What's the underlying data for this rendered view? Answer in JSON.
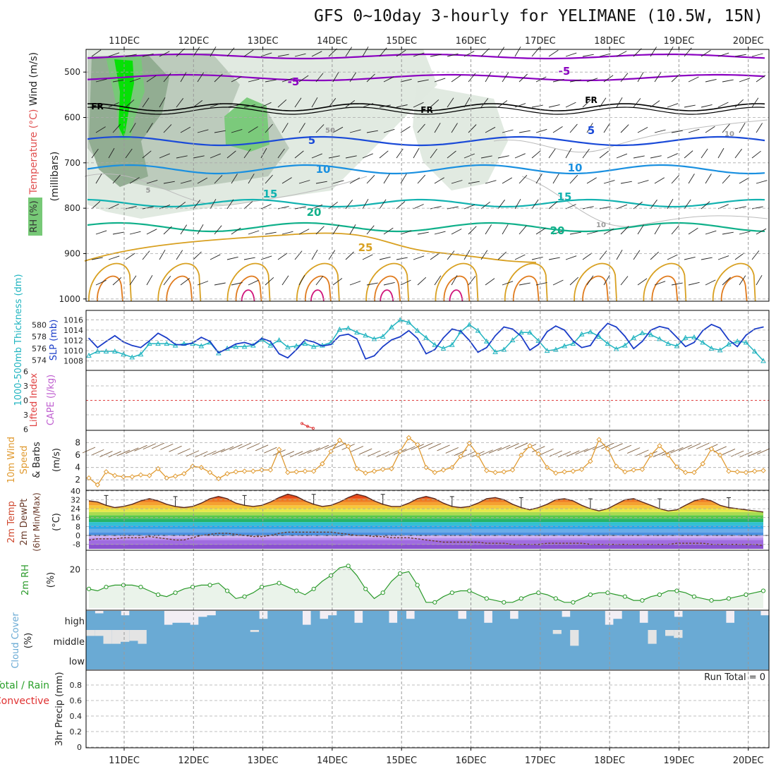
{
  "title": "GFS 0~10day 3-hourly for YELIMANE (10.5W, 15N)",
  "dates": [
    "11DEC",
    "12DEC",
    "13DEC",
    "14DEC",
    "15DEC",
    "16DEC",
    "17DEC",
    "18DEC",
    "19DEC",
    "20DEC"
  ],
  "colors": {
    "rh_light": "#dfe9df",
    "rh_mid": "#b9c9b9",
    "rh_dark": "#8fab8f",
    "rh_green": "#77c977",
    "rh_bright": "#00e200",
    "temp_neg": "#8a00c0",
    "temp_fr": "#000000",
    "temp5": "#1a4ad8",
    "temp10": "#1a90e0",
    "temp15": "#12b2b0",
    "temp20": "#10b08a",
    "temp25": "#d8a020",
    "temp_hot": "#e07a1c",
    "temp_hotter": "#d0147a",
    "slp": "#1a3cc8",
    "thick": "#20b4c0",
    "lifted": "#e04040",
    "cape": "#c060d0",
    "wind": "#e09a30",
    "barb": "#806040",
    "dew": "#6b3c2c",
    "rh2m": "#2a9a2a",
    "rh2m_fill": "#eaf3ea",
    "cloud": "#6aaad4",
    "cloud_bg": "#f2eef4",
    "cloud_grey": "#e4e4e4",
    "precip_total": "#2aa02a",
    "precip_conv": "#e03030"
  },
  "panel1": {
    "ylabel_wind": "Wind (m/s)",
    "ylabel_temp": "Temperature (°C)",
    "ylabel_rh": "RH (%)",
    "ylabel_mb": "(millibars)",
    "yticks": [
      "500",
      "600",
      "700",
      "800",
      "900",
      "1000"
    ],
    "isotherm_labels": [
      "-5",
      "-5",
      "FR",
      "FR",
      "FR",
      "5",
      "5",
      "10",
      "10",
      "15",
      "15",
      "20",
      "20",
      "25",
      "50",
      "10",
      "10",
      "5"
    ]
  },
  "panel2": {
    "ylabel_thick": "1000-500mb Thickness (dm)",
    "ylabel_slp": "SLP (mb)",
    "yticks_left": [
      "580",
      "578",
      "576",
      "574"
    ],
    "yticks_right": [
      "1016",
      "1014",
      "1012",
      "1010",
      "1008"
    ]
  },
  "panel3": {
    "ylabel_li": "Lifted Index",
    "ylabel_cape": "CAPE (J/kg)",
    "yticks": [
      "6",
      "3",
      "0",
      "3",
      "6"
    ]
  },
  "panel4": {
    "ylabel_a": "10m Wind",
    "ylabel_b": "Speed",
    "ylabel_c": "& Barbs",
    "ylabel_unit": "(m/s)",
    "yticks": [
      "8",
      "6",
      "4",
      "2"
    ]
  },
  "panel5": {
    "ylabel_a": "2m Temp",
    "ylabel_b": "2m DewPt",
    "ylabel_c": "(6hr Min/Max)",
    "ylabel_unit": "(°C)",
    "yticks": [
      "40",
      "32",
      "24",
      "16",
      "8",
      "0",
      "-8"
    ]
  },
  "panel6": {
    "ylabel": "2m RH",
    "ylabel_unit": "(%)",
    "yticks": [
      "20"
    ]
  },
  "panel7": {
    "ylabel": "Cloud Cover",
    "ylabel_unit": "(%)",
    "levels": [
      "high",
      "middle",
      "low"
    ]
  },
  "panel8": {
    "ylabel_a": "Total / Rain",
    "ylabel_b": "Convective",
    "ylabel_c": "3hr Precip (mm)",
    "run_total": "Run Total = 0",
    "yticks": [
      "0.8",
      "0.6",
      "0.4",
      "0.2",
      "0"
    ]
  },
  "chart_data": {
    "type": "line",
    "time_step_hours": 3,
    "steps": 79,
    "slp_mb": [
      1012.4,
      1010.6,
      1011.8,
      1012.9,
      1011.7,
      1011.0,
      1010.6,
      1011.9,
      1013.4,
      1012.5,
      1011.2,
      1011.1,
      1011.5,
      1012.6,
      1011.8,
      1009.6,
      1010.4,
      1011.3,
      1011.6,
      1011.1,
      1012.4,
      1011.8,
      1009.4,
      1008.6,
      1010.2,
      1012.1,
      1011.7,
      1010.9,
      1011.2,
      1012.9,
      1013.2,
      1012.3,
      1008.4,
      1009.0,
      1010.8,
      1012.1,
      1012.7,
      1013.9,
      1012.4,
      1009.4,
      1010.2,
      1012.5,
      1014.2,
      1013.8,
      1012.0,
      1009.7,
      1010.6,
      1012.9,
      1014.6,
      1014.2,
      1012.8,
      1010.1,
      1011.2,
      1013.7,
      1014.8,
      1014.0,
      1011.9,
      1010.6,
      1011.0,
      1013.5,
      1015.3,
      1014.6,
      1012.8,
      1010.4,
      1011.8,
      1014.0,
      1014.7,
      1014.3,
      1012.6,
      1010.8,
      1011.6,
      1013.9,
      1015.1,
      1014.4,
      1012.1,
      1010.8,
      1013.0,
      1014.2,
      1014.6
    ],
    "thickness_dm": [
      574.8,
      575.5,
      575.5,
      575.5,
      575.0,
      574.5,
      575.0,
      576.8,
      576.8,
      576.8,
      576.5,
      576.8,
      576.8,
      576.4,
      577.0,
      575.2,
      576.0,
      576.3,
      576.3,
      576.5,
      577.5,
      576.5,
      577.4,
      576.2,
      576.4,
      576.8,
      576.3,
      576.5,
      577.0,
      579.2,
      579.4,
      578.7,
      578.2,
      577.6,
      578.0,
      579.6,
      580.8,
      580.4,
      579.0,
      577.8,
      576.6,
      576.0,
      576.6,
      578.8,
      580.0,
      579.0,
      577.2,
      575.4,
      575.8,
      577.4,
      578.7,
      578.7,
      577.3,
      575.6,
      575.8,
      576.4,
      576.8,
      578.4,
      578.8,
      578.0,
      576.8,
      575.9,
      576.5,
      577.8,
      578.6,
      578.3,
      577.6,
      576.8,
      576.4,
      577.8,
      577.9,
      577.0,
      576.0,
      575.7,
      576.7,
      577.2,
      577.0,
      575.5,
      573.9
    ],
    "wind10m_ms": [
      2.3,
      1.2,
      3.3,
      2.7,
      2.5,
      2.5,
      2.8,
      2.7,
      3.8,
      2.3,
      2.6,
      3.0,
      4.2,
      4.0,
      3.2,
      2.2,
      3.0,
      3.3,
      3.4,
      3.4,
      3.6,
      3.6,
      6.9,
      3.2,
      3.3,
      3.4,
      3.4,
      4.6,
      6.6,
      8.4,
      7.4,
      3.8,
      3.1,
      3.4,
      3.7,
      3.8,
      6.6,
      8.8,
      7.7,
      4.0,
      3.2,
      3.6,
      4.0,
      5.8,
      7.9,
      6.0,
      3.5,
      3.2,
      3.3,
      3.6,
      6.0,
      7.5,
      6.2,
      4.0,
      3.1,
      3.3,
      3.4,
      3.7,
      5.0,
      8.5,
      7.0,
      4.2,
      3.3,
      3.6,
      3.7,
      6.0,
      7.5,
      6.0,
      4.1,
      3.2,
      3.2,
      4.6,
      7.0,
      6.0,
      3.4,
      3.3,
      3.2,
      3.4,
      3.5
    ],
    "temp2m_c": [
      31,
      30,
      27,
      25,
      26,
      28,
      31,
      33,
      31,
      28,
      26,
      25,
      26,
      29,
      33,
      35,
      33,
      29,
      27,
      26,
      27,
      30,
      34,
      37,
      35,
      31,
      28,
      26,
      27,
      30,
      34,
      37,
      35,
      31,
      28,
      26,
      26,
      29,
      33,
      35,
      33,
      29,
      26,
      25,
      26,
      29,
      33,
      34,
      32,
      28,
      25,
      23,
      25,
      28,
      32,
      33,
      31,
      27,
      24,
      22,
      24,
      28,
      32,
      33,
      30,
      27,
      24,
      22,
      23,
      27,
      31,
      33,
      31,
      27,
      25,
      24,
      23,
      22,
      21
    ],
    "dewpt2m_c": [
      -4,
      -3,
      -3,
      -3,
      -2,
      -2,
      -2,
      -1,
      -2,
      -3,
      -4,
      -4,
      -2,
      0,
      1,
      2,
      2,
      1,
      0,
      -1,
      -1,
      0,
      2,
      3,
      3,
      3,
      3,
      3,
      3,
      2,
      1,
      0,
      0,
      -1,
      -1,
      -2,
      -2,
      -2,
      -3,
      -4,
      -5,
      -6,
      -6,
      -6,
      -6,
      -6,
      -7,
      -7,
      -7,
      -8,
      -8,
      -8,
      -8,
      -7,
      -7,
      -7,
      -7,
      -7,
      -8,
      -8,
      -8,
      -8,
      -8,
      -8,
      -8,
      -8,
      -8,
      -8,
      -7,
      -7,
      -7,
      -7,
      -8,
      -8,
      -8,
      -8,
      -8,
      -8,
      -9
    ],
    "rh2m_pct": [
      10,
      9,
      11,
      12,
      12,
      12,
      11,
      9,
      7,
      6,
      8,
      10,
      11,
      12,
      12,
      13,
      9,
      5,
      6,
      8,
      11,
      12,
      13,
      11,
      9,
      7,
      10,
      14,
      17,
      21,
      22,
      17,
      10,
      5,
      8,
      14,
      18,
      19,
      12,
      3,
      3,
      6,
      8,
      9,
      9,
      7,
      5,
      4,
      3,
      3,
      5,
      7,
      8,
      7,
      5,
      3,
      3,
      5,
      7,
      8,
      8,
      7,
      6,
      4,
      4,
      6,
      7,
      9,
      9,
      8,
      6,
      5,
      4,
      4,
      5,
      6,
      7,
      8,
      9
    ],
    "cloud_high_pct": [
      100,
      88,
      100,
      100,
      78,
      100,
      100,
      100,
      100,
      30,
      40,
      40,
      30,
      70,
      78,
      100,
      100,
      100,
      100,
      100,
      60,
      100,
      100,
      100,
      100,
      30,
      100,
      60,
      78,
      100,
      100,
      40,
      100,
      100,
      100,
      40,
      100,
      60,
      100,
      100,
      100,
      100,
      100,
      60,
      100,
      100,
      40,
      100,
      100,
      60,
      100,
      100,
      100,
      100,
      100,
      70,
      100,
      100,
      100,
      100,
      30,
      60,
      100,
      100,
      40,
      100,
      100,
      100,
      70,
      100,
      100,
      100,
      100,
      100,
      40,
      100,
      100,
      100,
      78
    ],
    "cloud_mid_pct": [
      30,
      30,
      70,
      70,
      60,
      55,
      70,
      0,
      0,
      0,
      0,
      0,
      0,
      0,
      0,
      0,
      0,
      0,
      0,
      10,
      0,
      0,
      0,
      0,
      0,
      0,
      0,
      0,
      0,
      0,
      0,
      0,
      0,
      0,
      0,
      0,
      0,
      0,
      0,
      0,
      0,
      0,
      0,
      0,
      0,
      0,
      0,
      0,
      0,
      0,
      0,
      0,
      0,
      0,
      20,
      0,
      80,
      0,
      0,
      0,
      0,
      0,
      0,
      0,
      0,
      70,
      0,
      30,
      40,
      0,
      0,
      0,
      0,
      0,
      0,
      0,
      0,
      0,
      0
    ],
    "cloud_low_pct": [
      100,
      100,
      100,
      100,
      100,
      100,
      100,
      100,
      100,
      100,
      100,
      100,
      100,
      100,
      100,
      100,
      100,
      100,
      100,
      100,
      100,
      100,
      100,
      100,
      100,
      100,
      100,
      100,
      100,
      100,
      100,
      100,
      100,
      100,
      100,
      100,
      100,
      100,
      100,
      100,
      100,
      100,
      100,
      100,
      100,
      100,
      100,
      100,
      100,
      100,
      100,
      100,
      100,
      100,
      100,
      100,
      100,
      100,
      100,
      100,
      100,
      100,
      100,
      100,
      100,
      100,
      100,
      100,
      100,
      100,
      100,
      100,
      100,
      100,
      100,
      100,
      100,
      100,
      100
    ],
    "lifted_index_segment": [
      -4.8,
      -5.4,
      -5.8
    ],
    "precip_3hr_mm_total": 0
  }
}
